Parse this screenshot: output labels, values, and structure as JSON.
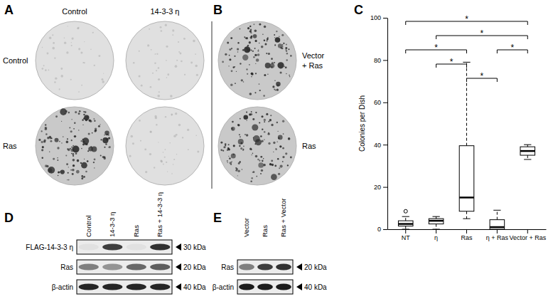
{
  "panel_a": {
    "label": "A",
    "columns": [
      "Control",
      "14-3-3 η"
    ],
    "rows": [
      "Control",
      "Ras"
    ]
  },
  "panel_b": {
    "label": "B",
    "rows": [
      [
        "Vector",
        "+ Ras"
      ],
      [
        "Ras"
      ]
    ]
  },
  "chart_data": {
    "type": "box",
    "title": "C",
    "y_label": "Colonies per Dish",
    "categories": [
      "NT",
      "η",
      "Ras",
      "η + Ras",
      "Vector + Ras"
    ],
    "boxes": [
      {
        "whisker_low": 0,
        "q1": 1.5,
        "median": 2.5,
        "q3": 4,
        "whisker_high": 6,
        "outliers": [
          8.5
        ]
      },
      {
        "whisker_low": 0,
        "q1": 2.5,
        "median": 4,
        "q3": 5,
        "whisker_high": 6,
        "outliers": []
      },
      {
        "whisker_low": 5,
        "q1": 8.5,
        "median": 15,
        "q3": 39.5,
        "whisker_high": 79,
        "outliers": []
      },
      {
        "whisker_low": 0,
        "q1": 0,
        "median": 1,
        "q3": 4.5,
        "whisker_high": 9,
        "outliers": []
      },
      {
        "whisker_low": 33,
        "q1": 35,
        "median": 37,
        "q3": 39,
        "whisker_high": 40,
        "outliers": []
      }
    ],
    "ylim": [
      0,
      100
    ],
    "yticks": [
      0,
      20,
      40,
      60,
      80,
      100
    ],
    "color": "#000000",
    "significance": [
      {
        "between": [
          "NT",
          "Vector + Ras"
        ],
        "label": "*"
      },
      {
        "between": [
          "η",
          "Vector + Ras"
        ],
        "label": "*"
      },
      {
        "between": [
          "NT",
          "Ras"
        ],
        "label": "*"
      },
      {
        "between": [
          "η + Ras",
          "Vector + Ras"
        ],
        "label": "*"
      },
      {
        "between": [
          "η",
          "Ras"
        ],
        "label": "*"
      },
      {
        "between": [
          "Ras",
          "η + Ras"
        ],
        "label": "*"
      }
    ]
  },
  "panel_d": {
    "label": "D",
    "lanes": [
      "Control",
      "14-3-3 η",
      "Ras",
      "Ras + 14-3-3 η"
    ],
    "rows": [
      {
        "name": "FLAG-14-3-3 η",
        "size": "30 kDa",
        "intensity": [
          0.05,
          0.8,
          0.05,
          0.85
        ]
      },
      {
        "name": "Ras",
        "size": "20 kDa",
        "intensity": [
          0.5,
          0.4,
          0.6,
          0.65
        ]
      },
      {
        "name": "β-actin",
        "size": "40 kDa",
        "intensity": [
          0.9,
          0.9,
          0.9,
          0.9
        ]
      }
    ]
  },
  "panel_e": {
    "label": "E",
    "lanes": [
      "Vector",
      "Ras",
      "Ras + Vector"
    ],
    "rows": [
      {
        "name": "Ras",
        "size": "20 kDa",
        "intensity": [
          0.5,
          0.8,
          0.85
        ]
      },
      {
        "name": "β-actin",
        "size": "40 kDa",
        "intensity": [
          0.95,
          0.95,
          0.95
        ]
      }
    ]
  }
}
